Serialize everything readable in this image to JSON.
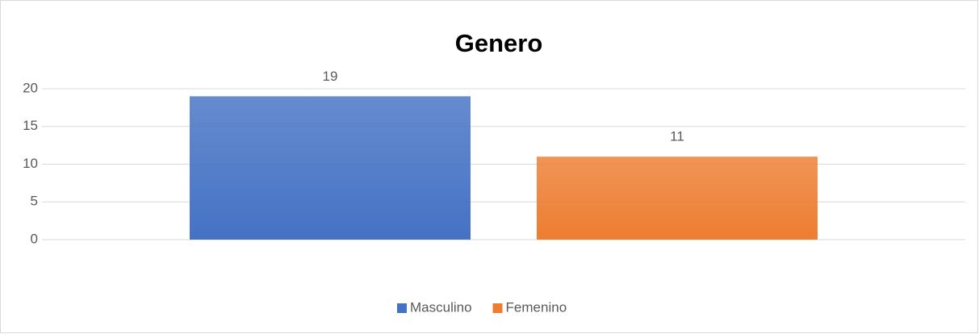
{
  "chart_data": {
    "type": "bar",
    "title": "Genero",
    "categories": [
      null
    ],
    "series": [
      {
        "name": "Masculino",
        "color": "#4472c4",
        "values": [
          19
        ]
      },
      {
        "name": "Femenino",
        "color": "#ed7d31",
        "values": [
          11
        ]
      }
    ],
    "ylim": [
      0,
      20
    ],
    "yticks": [
      0,
      5,
      10,
      15,
      20
    ],
    "grid": true,
    "legend": "bottom"
  }
}
